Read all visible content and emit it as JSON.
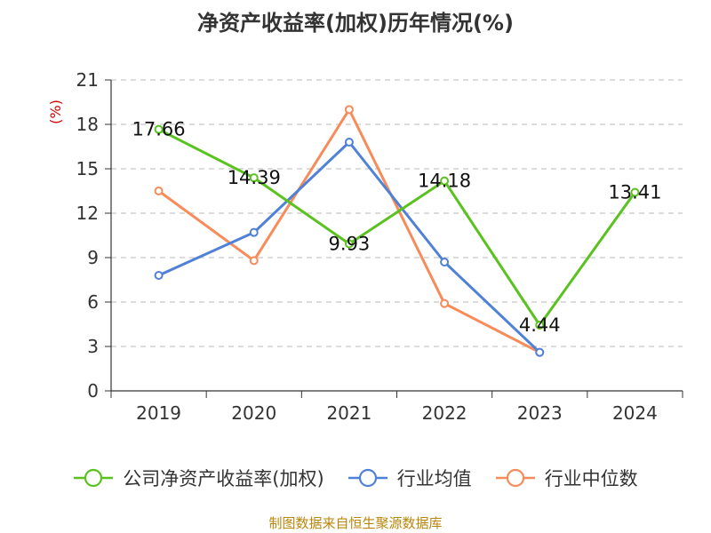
{
  "title": "净资产收益率(加权)历年情况(%)",
  "source": "制图数据来自恒生聚源数据库",
  "chart_data": {
    "type": "line",
    "title": "净资产收益率(加权)历年情况(%)",
    "xlabel": "",
    "ylabel": "(%)",
    "categories": [
      "2019",
      "2020",
      "2021",
      "2022",
      "2023",
      "2024"
    ],
    "ylim": [
      0,
      21
    ],
    "yticks": [
      0,
      3,
      6,
      9,
      12,
      15,
      18,
      21
    ],
    "grid": true,
    "legend_position": "bottom",
    "series": [
      {
        "name": "公司净资产收益率(加权)",
        "color": "#5ac21f",
        "values": [
          17.66,
          14.39,
          9.93,
          14.18,
          4.44,
          13.41
        ],
        "labels_shown": true
      },
      {
        "name": "行业均值",
        "color": "#4f81d8",
        "values": [
          7.8,
          10.7,
          16.8,
          8.7,
          2.6,
          null
        ],
        "labels_shown": false
      },
      {
        "name": "行业中位数",
        "color": "#f78b5a",
        "values": [
          13.5,
          8.8,
          19.0,
          5.9,
          2.6,
          null
        ],
        "labels_shown": false
      }
    ]
  }
}
